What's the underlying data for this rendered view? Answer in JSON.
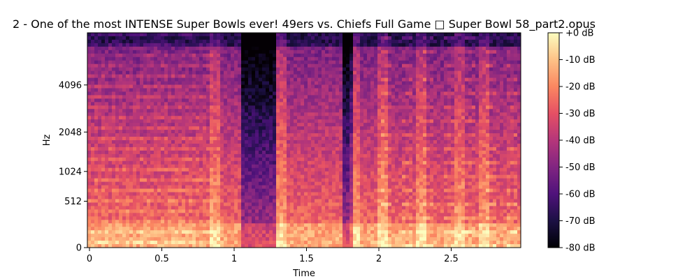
{
  "chart_data": {
    "type": "heatmap",
    "title": "2 - One of the most INTENSE Super Bowls ever! 49ers vs. Chiefs Full Game □ Super Bowl 58_part2.opus",
    "xlabel": "Time",
    "ylabel": "Hz",
    "xlim": [
      0,
      2.99
    ],
    "x_ticks": [
      {
        "value": 0,
        "label": "0"
      },
      {
        "value": 0.5,
        "label": "0.5"
      },
      {
        "value": 1,
        "label": "1"
      },
      {
        "value": 1.5,
        "label": "1.5"
      },
      {
        "value": 2,
        "label": "2"
      },
      {
        "value": 2.5,
        "label": "2.5"
      }
    ],
    "y_scale": "log-like (mel)",
    "y_ticks": [
      {
        "value": 0,
        "label": "0"
      },
      {
        "value": 512,
        "label": "512"
      },
      {
        "value": 1024,
        "label": "1024"
      },
      {
        "value": 2048,
        "label": "2048"
      },
      {
        "value": 4096,
        "label": "4096"
      }
    ],
    "colormap": "magma",
    "colorbar": {
      "range": [
        -80,
        0
      ],
      "unit": "dB",
      "ticks": [
        {
          "value": 0,
          "label": "+0 dB"
        },
        {
          "value": -10,
          "label": "-10 dB"
        },
        {
          "value": -20,
          "label": "-20 dB"
        },
        {
          "value": -30,
          "label": "-30 dB"
        },
        {
          "value": -40,
          "label": "-40 dB"
        },
        {
          "value": -50,
          "label": "-50 dB"
        },
        {
          "value": -60,
          "label": "-60 dB"
        },
        {
          "value": -70,
          "label": "-70 dB"
        },
        {
          "value": -80,
          "label": "-80 dB"
        }
      ]
    },
    "loud_segments_s": [
      [
        0,
        0.85
      ],
      [
        0.85,
        1.0
      ],
      [
        1.3,
        1.75
      ],
      [
        1.8,
        2.0
      ],
      [
        2.0,
        2.99
      ]
    ],
    "quiet_gaps_s": [
      [
        1.05,
        1.3
      ],
      [
        1.75,
        1.82
      ]
    ]
  }
}
